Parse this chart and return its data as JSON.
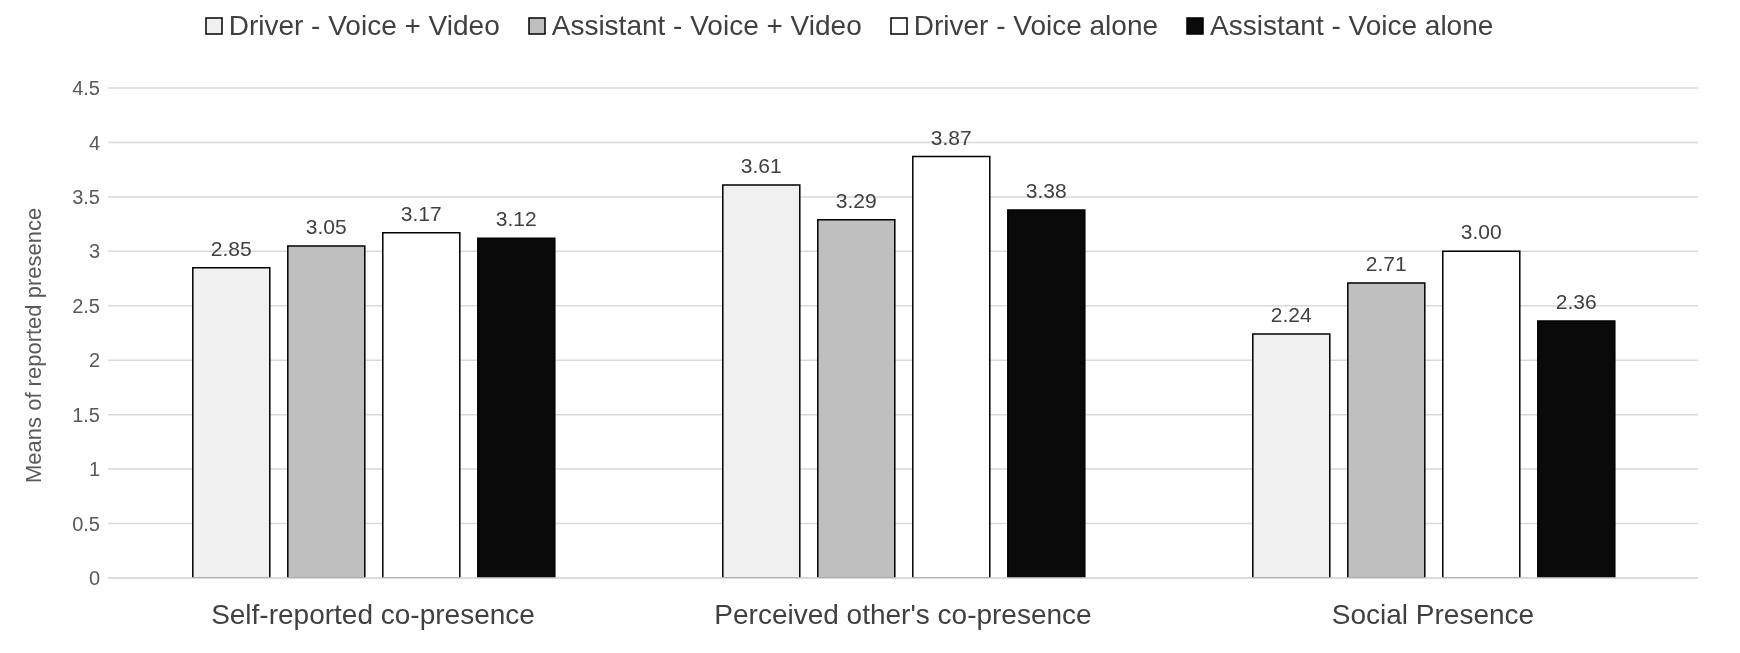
{
  "chart_data": {
    "type": "bar",
    "ylabel": "Means of reported presence",
    "categories": [
      "Self-reported co-presence",
      "Perceived other's co-presence",
      "Social Presence"
    ],
    "series": [
      {
        "name": "Driver - Voice + Video",
        "color": "#f0f0f0",
        "values": [
          2.85,
          3.61,
          2.24
        ],
        "value_labels": [
          "2.85",
          "3.61",
          "2.24"
        ]
      },
      {
        "name": "Assistant - Voice + Video",
        "color": "#bfbfbf",
        "values": [
          3.05,
          3.29,
          2.71
        ],
        "value_labels": [
          "3.05",
          "3.29",
          "2.71"
        ]
      },
      {
        "name": "Driver - Voice alone",
        "color": "#ffffff",
        "values": [
          3.17,
          3.87,
          3.0
        ],
        "value_labels": [
          "3.17",
          "3.87",
          "3.00"
        ]
      },
      {
        "name": "Assistant - Voice alone",
        "color": "#0a0a0a",
        "values": [
          3.12,
          3.38,
          2.36
        ],
        "value_labels": [
          "3.12",
          "3.38",
          "2.36"
        ]
      }
    ],
    "ylim": [
      0,
      4.5
    ],
    "yticks": [
      0,
      0.5,
      1,
      1.5,
      2,
      2.5,
      3,
      3.5,
      4,
      4.5
    ],
    "grid": "y",
    "legend": "top"
  }
}
